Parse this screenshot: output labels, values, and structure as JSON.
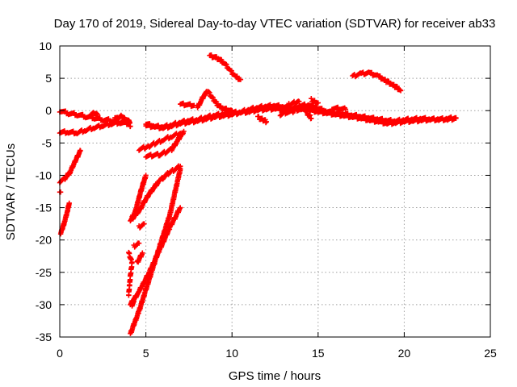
{
  "chart_data": {
    "type": "scatter",
    "title": "Day 170 of 2019, Sidereal Day-to-day VTEC variation (SDTVAR) for receiver ab33",
    "xlabel": "GPS time / hours",
    "ylabel": "SDTVAR / TECUs",
    "xlim": [
      0,
      25
    ],
    "ylim": [
      -35,
      10
    ],
    "xticks": [
      0,
      5,
      10,
      15,
      20,
      25
    ],
    "yticks": [
      -35,
      -30,
      -25,
      -20,
      -15,
      -10,
      -5,
      0,
      5,
      10
    ],
    "grid": true,
    "marker": "plus",
    "color": "#ff0000",
    "series": [
      {
        "points": [
          [
            0.0,
            0.0
          ],
          [
            0.5,
            -0.4
          ],
          [
            1.0,
            -0.6
          ],
          [
            1.5,
            -0.9
          ],
          [
            2.0,
            -1.1
          ],
          [
            2.5,
            -1.4
          ],
          [
            3.0,
            -1.5
          ],
          [
            3.5,
            -1.8
          ],
          [
            4.0,
            -2.0
          ]
        ]
      },
      {
        "points": [
          [
            0.0,
            -3.3
          ],
          [
            0.5,
            -3.3
          ],
          [
            1.0,
            -3.4
          ],
          [
            1.5,
            -3.0
          ],
          [
            2.0,
            -2.6
          ],
          [
            2.5,
            -2.3
          ],
          [
            3.0,
            -2.0
          ],
          [
            3.5,
            -1.8
          ],
          [
            4.0,
            -1.3
          ],
          [
            4.1,
            -2.4
          ]
        ]
      },
      {
        "points": [
          [
            0.0,
            -11.0
          ],
          [
            0.3,
            -10.5
          ],
          [
            0.6,
            -9.5
          ],
          [
            0.9,
            -7.8
          ],
          [
            1.2,
            -6.2
          ]
        ]
      },
      {
        "points": [
          [
            0.0,
            -12.5
          ],
          [
            0.05,
            -12.6
          ]
        ]
      },
      {
        "points": [
          [
            0.05,
            -19.0
          ],
          [
            0.15,
            -18.3
          ],
          [
            0.3,
            -17.0
          ],
          [
            0.45,
            -15.5
          ],
          [
            0.55,
            -14.3
          ]
        ]
      },
      {
        "points": [
          [
            4.1,
            -17.0
          ],
          [
            4.6,
            -15.5
          ],
          [
            5.2,
            -12.8
          ],
          [
            5.8,
            -10.8
          ],
          [
            6.4,
            -9.5
          ],
          [
            7.0,
            -8.6
          ]
        ]
      },
      {
        "points": [
          [
            4.1,
            -30.0
          ],
          [
            4.6,
            -28.0
          ],
          [
            5.2,
            -25.0
          ],
          [
            5.8,
            -21.5
          ],
          [
            6.4,
            -18.0
          ],
          [
            7.0,
            -15.0
          ]
        ]
      },
      {
        "points": [
          [
            4.1,
            -34.5
          ],
          [
            4.6,
            -31.0
          ],
          [
            5.2,
            -26.0
          ],
          [
            5.8,
            -21.0
          ],
          [
            6.4,
            -16.0
          ],
          [
            7.0,
            -9.0
          ]
        ]
      },
      {
        "points": [
          [
            4.0,
            -22.0
          ],
          [
            4.2,
            -23.5
          ],
          [
            4.1,
            -25.5
          ],
          [
            4.05,
            -27.0
          ],
          [
            4.0,
            -28.5
          ]
        ]
      },
      {
        "points": [
          [
            4.2,
            -16.5
          ],
          [
            4.4,
            -15.5
          ],
          [
            4.7,
            -12.5
          ],
          [
            5.0,
            -10.0
          ]
        ]
      },
      {
        "points": [
          [
            4.5,
            -23.5
          ],
          [
            4.8,
            -22.0
          ]
        ]
      },
      {
        "points": [
          [
            4.6,
            -18.0
          ],
          [
            4.9,
            -17.5
          ]
        ]
      },
      {
        "points": [
          [
            4.3,
            -21.0
          ],
          [
            4.6,
            -20.5
          ]
        ]
      },
      {
        "points": [
          [
            4.2,
            -30.0
          ],
          [
            4.3,
            -29.5
          ]
        ]
      },
      {
        "points": [
          [
            5.0,
            -7.0
          ],
          [
            5.8,
            -6.8
          ],
          [
            6.5,
            -6.0
          ],
          [
            7.2,
            -3.2
          ]
        ]
      },
      {
        "points": [
          [
            4.6,
            -6.0
          ],
          [
            5.2,
            -5.5
          ],
          [
            6.0,
            -4.5
          ],
          [
            6.5,
            -4.0
          ],
          [
            7.0,
            -3.5
          ]
        ]
      },
      {
        "points": [
          [
            5.0,
            -2.0
          ],
          [
            5.5,
            -2.4
          ],
          [
            6.0,
            -2.5
          ],
          [
            6.5,
            -2.2
          ],
          [
            7.0,
            -1.8
          ],
          [
            7.5,
            -1.5
          ],
          [
            8.0,
            -1.4
          ],
          [
            8.5,
            -1.0
          ],
          [
            9.0,
            -0.7
          ],
          [
            9.5,
            -0.5
          ],
          [
            10.0,
            -0.3
          ],
          [
            10.5,
            -0.2
          ],
          [
            11.0,
            0.2
          ],
          [
            11.5,
            0.5
          ],
          [
            12.0,
            0.7
          ],
          [
            12.5,
            0.8
          ],
          [
            13.0,
            0.6
          ],
          [
            13.5,
            0.4
          ],
          [
            14.0,
            0.8
          ],
          [
            14.5,
            0.9
          ],
          [
            15.0,
            0.4
          ],
          [
            15.5,
            -0.1
          ],
          [
            16.0,
            -0.4
          ],
          [
            16.5,
            -0.5
          ],
          [
            17.0,
            -0.7
          ],
          [
            17.5,
            -0.9
          ],
          [
            18.0,
            -1.1
          ],
          [
            18.5,
            -1.3
          ],
          [
            19.0,
            -1.5
          ],
          [
            19.5,
            -1.6
          ],
          [
            20.0,
            -1.4
          ],
          [
            20.5,
            -1.3
          ],
          [
            21.0,
            -1.2
          ],
          [
            21.5,
            -1.3
          ],
          [
            22.0,
            -1.4
          ],
          [
            22.5,
            -1.2
          ],
          [
            23.0,
            -1.1
          ]
        ]
      },
      {
        "points": [
          [
            5.0,
            -2.3
          ],
          [
            5.5,
            -2.5
          ],
          [
            6.0,
            -2.7
          ],
          [
            6.5,
            -2.4
          ],
          [
            7.0,
            -2.0
          ],
          [
            7.5,
            -1.8
          ],
          [
            8.0,
            -1.6
          ],
          [
            8.5,
            -1.3
          ],
          [
            9.0,
            -1.0
          ],
          [
            9.5,
            -0.8
          ],
          [
            10.0,
            -0.6
          ],
          [
            10.5,
            -0.3
          ],
          [
            11.0,
            -0.2
          ],
          [
            11.5,
            0.1
          ],
          [
            12.0,
            0.2
          ],
          [
            12.5,
            0.3
          ],
          [
            13.0,
            0.1
          ],
          [
            13.5,
            0.0
          ],
          [
            14.0,
            0.2
          ],
          [
            14.5,
            0.1
          ],
          [
            15.0,
            -0.2
          ],
          [
            15.5,
            -0.4
          ],
          [
            16.0,
            -0.6
          ],
          [
            16.5,
            -0.8
          ],
          [
            17.0,
            -1.0
          ],
          [
            17.5,
            -1.2
          ],
          [
            18.0,
            -1.5
          ],
          [
            18.5,
            -1.7
          ],
          [
            19.0,
            -2.0
          ],
          [
            19.5,
            -1.9
          ],
          [
            20.0,
            -1.7
          ],
          [
            20.5,
            -1.6
          ],
          [
            21.0,
            -1.5
          ],
          [
            21.5,
            -1.4
          ],
          [
            22.0,
            -1.3
          ],
          [
            22.5,
            -1.4
          ],
          [
            23.0,
            -1.2
          ]
        ]
      },
      {
        "points": [
          [
            8.0,
            0.5
          ],
          [
            8.2,
            1.5
          ],
          [
            8.4,
            2.5
          ],
          [
            8.6,
            3.0
          ],
          [
            8.8,
            2.2
          ],
          [
            9.0,
            1.5
          ],
          [
            9.2,
            0.8
          ],
          [
            9.5,
            0.3
          ],
          [
            10.0,
            0.0
          ]
        ]
      },
      {
        "points": [
          [
            7.0,
            1.0
          ],
          [
            7.4,
            0.9
          ],
          [
            7.8,
            0.8
          ]
        ]
      },
      {
        "points": [
          [
            8.7,
            8.5
          ],
          [
            9.0,
            8.3
          ],
          [
            9.3,
            7.9
          ],
          [
            9.6,
            7.2
          ],
          [
            9.9,
            6.2
          ],
          [
            10.2,
            5.3
          ],
          [
            10.5,
            4.8
          ]
        ]
      },
      {
        "points": [
          [
            17.0,
            5.3
          ],
          [
            17.5,
            5.7
          ],
          [
            18.0,
            5.8
          ],
          [
            18.5,
            5.3
          ],
          [
            19.0,
            4.5
          ],
          [
            19.5,
            3.7
          ],
          [
            19.8,
            3.1
          ]
        ]
      },
      {
        "points": [
          [
            11.5,
            -1.0
          ],
          [
            11.7,
            -1.3
          ],
          [
            11.9,
            -1.5
          ],
          [
            12.0,
            -1.7
          ]
        ]
      },
      {
        "points": [
          [
            14.2,
            0.5
          ],
          [
            14.3,
            -0.3
          ],
          [
            14.5,
            -0.8
          ],
          [
            14.6,
            -1.2
          ]
        ]
      },
      {
        "points": [
          [
            14.6,
            1.7
          ],
          [
            14.8,
            1.4
          ],
          [
            15.0,
            1.2
          ]
        ]
      },
      {
        "points": [
          [
            13.3,
            0.9
          ],
          [
            13.6,
            1.2
          ],
          [
            13.9,
            1.4
          ]
        ]
      },
      {
        "points": [
          [
            15.8,
            0.4
          ],
          [
            16.2,
            0.3
          ],
          [
            16.6,
            0.2
          ]
        ]
      },
      {
        "points": [
          [
            12.8,
            -0.6
          ],
          [
            13.2,
            -0.2
          ],
          [
            13.6,
            -0.1
          ]
        ]
      },
      {
        "points": [
          [
            1.8,
            -0.5
          ],
          [
            2.0,
            -0.3
          ],
          [
            2.2,
            -0.6
          ]
        ]
      },
      {
        "points": [
          [
            3.2,
            -1.0
          ],
          [
            3.4,
            -1.2
          ],
          [
            3.6,
            -0.8
          ],
          [
            3.8,
            -1.4
          ]
        ]
      }
    ]
  }
}
